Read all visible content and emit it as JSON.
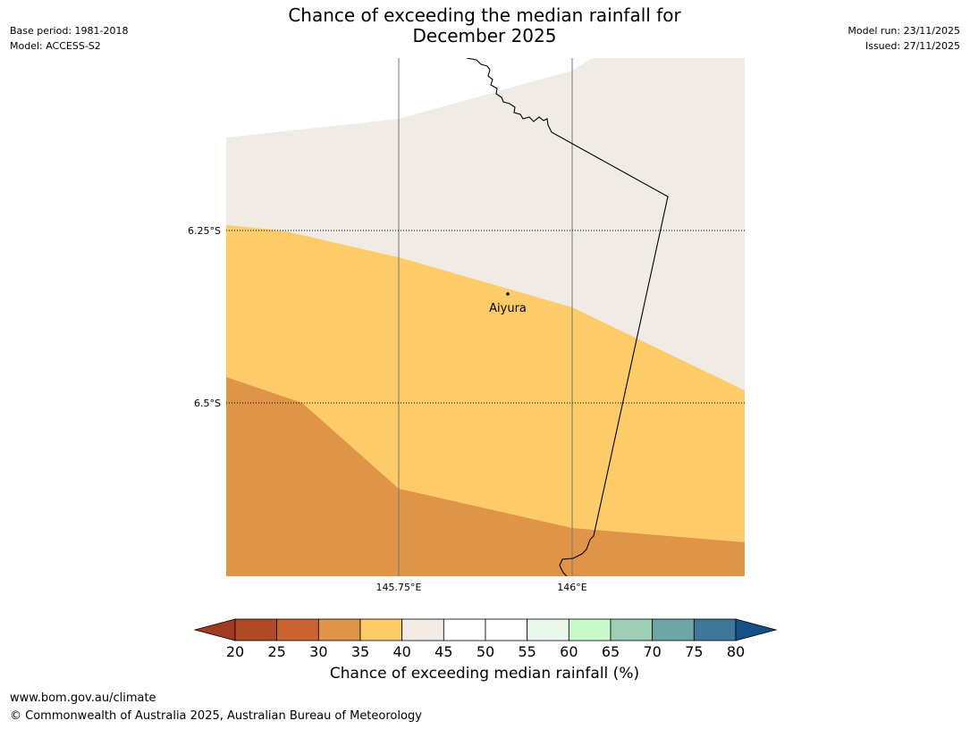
{
  "header": {
    "title_line1": "Chance of exceeding the median rainfall for",
    "title_line2": "December 2025",
    "base_period": "Base period: 1981-2018",
    "model": "Model: ACCESS-S2",
    "model_run": "Model run: 23/11/2025",
    "issued": "Issued: 27/11/2025"
  },
  "map": {
    "latitude_labels": [
      "6.25°S",
      "6.5°S"
    ],
    "longitude_labels": [
      "145.75°E",
      "146°E"
    ],
    "town": {
      "name": "Aiyura"
    },
    "zones": [
      {
        "category": "40-45",
        "color": "#f0ebe5"
      },
      {
        "category": "35-40",
        "color": "#fecb69"
      },
      {
        "category": "30-35",
        "color": "#e09448"
      }
    ]
  },
  "colorbar": {
    "ticks": [
      "20",
      "25",
      "30",
      "35",
      "40",
      "45",
      "50",
      "55",
      "60",
      "65",
      "70",
      "75",
      "80"
    ],
    "colors": [
      "#b04a26",
      "#cb6330",
      "#e09448",
      "#fecb69",
      "#f0ebe5",
      "#ffffff",
      "#ffffff",
      "#eaf6ea",
      "#c8fbc9",
      "#9ccfb6",
      "#6ea6a6",
      "#3d7799"
    ],
    "under_color": "#9e3b22",
    "over_color": "#145086",
    "label": "Chance of exceeding median rainfall (%)"
  },
  "footer": {
    "url": "www.bom.gov.au/climate",
    "copyright": "© Commonwealth of Australia 2025, Australian Bureau of Meteorology"
  }
}
